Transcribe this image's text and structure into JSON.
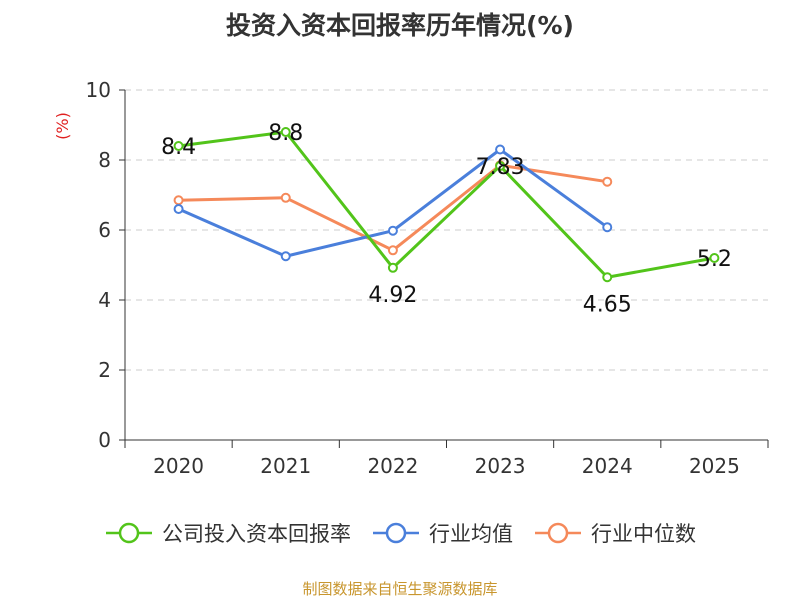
{
  "chart_data": {
    "type": "line",
    "title": "投资入资本回报率历年情况(%)",
    "unit_label": "(%)",
    "categories": [
      "2020",
      "2021",
      "2022",
      "2023",
      "2024",
      "2025"
    ],
    "y_ticks": [
      "0",
      "2",
      "4",
      "6",
      "8",
      "10"
    ],
    "ylim": [
      0,
      10
    ],
    "grid": true,
    "legend_position": "bottom",
    "series": [
      {
        "name": "公司投入资本回报率",
        "color": "#52c41a",
        "values": [
          8.4,
          8.8,
          4.92,
          7.83,
          4.65,
          5.2
        ],
        "labels": [
          "8.4",
          "8.8",
          "4.92",
          "7.83",
          "4.65",
          "5.2"
        ]
      },
      {
        "name": "行业均值",
        "color": "#4a7fdb",
        "values": [
          6.6,
          5.25,
          5.98,
          8.3,
          6.08,
          null
        ]
      },
      {
        "name": "行业中位数",
        "color": "#f5895a",
        "values": [
          6.85,
          6.92,
          5.42,
          7.85,
          7.38,
          null
        ]
      }
    ]
  },
  "source_note": "制图数据来自恒生聚源数据库"
}
